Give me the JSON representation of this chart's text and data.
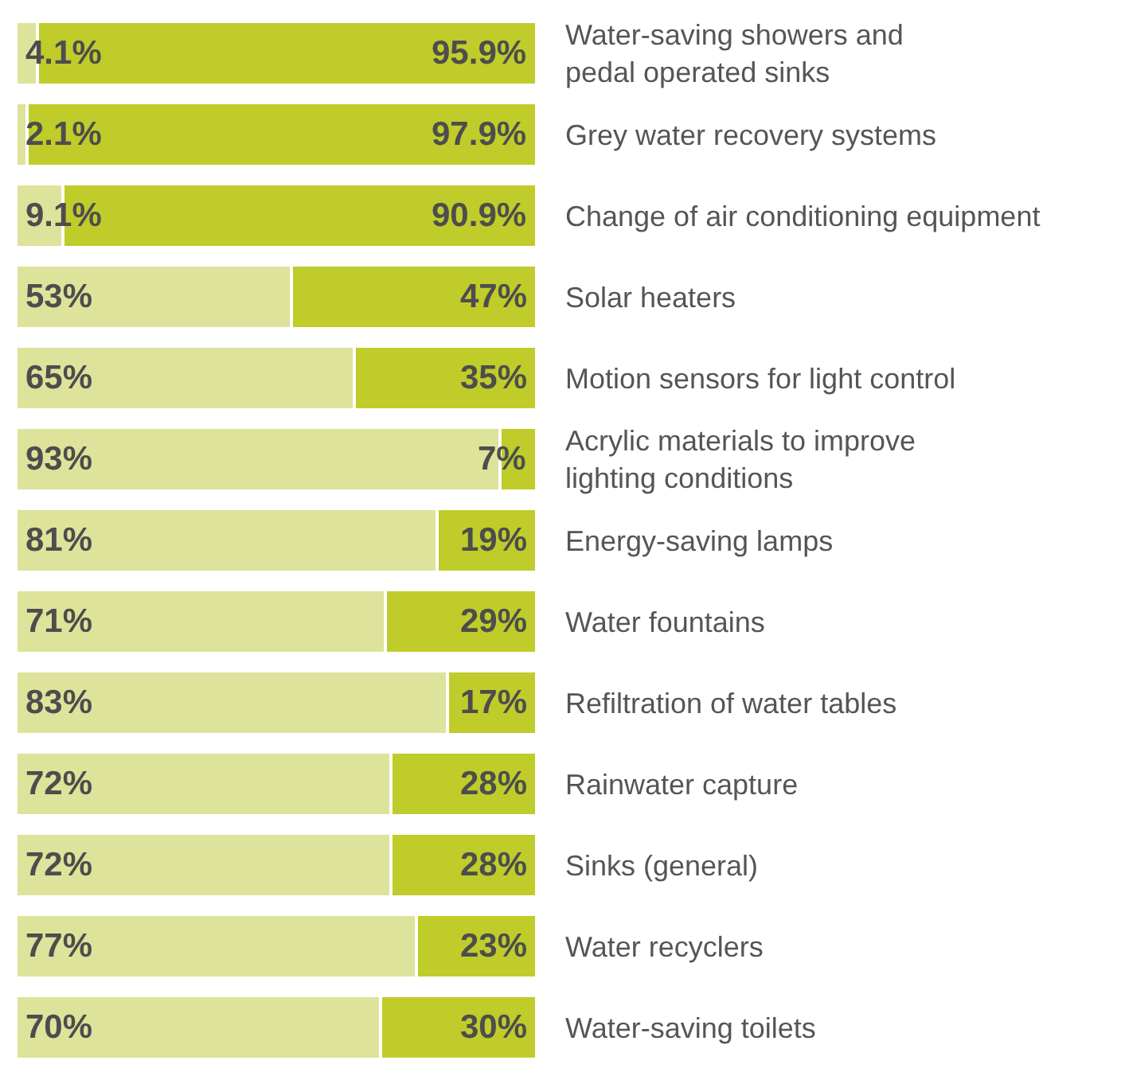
{
  "chart_data": {
    "type": "bar",
    "orientation": "horizontal",
    "stacked": true,
    "categories": [
      "Water-saving showers and\npedal operated sinks",
      "Grey water recovery systems",
      "Change of air conditioning equipment",
      "Solar heaters",
      "Motion sensors for light control",
      "Acrylic materials to improve\nlighting conditions",
      "Energy-saving lamps",
      "Water fountains",
      "Refiltration of water tables",
      "Rainwater capture",
      "Sinks (general)",
      "Water recyclers",
      "Water-saving toilets"
    ],
    "series": [
      {
        "color": "#dde39a",
        "values": [
          4.1,
          2.1,
          9.1,
          53,
          65,
          93,
          81,
          71,
          83,
          72,
          72,
          77,
          70
        ],
        "value_labels": [
          "4.1%",
          "2.1%",
          "9.1%",
          "53%",
          "65%",
          "93%",
          "81%",
          "71%",
          "83%",
          "72%",
          "72%",
          "77%",
          "70%"
        ]
      },
      {
        "color": "#bfcc2a",
        "values": [
          95.9,
          97.9,
          90.9,
          47,
          35,
          7,
          19,
          29,
          17,
          28,
          28,
          23,
          30
        ],
        "value_labels": [
          "95.9%",
          "97.9%",
          "90.9%",
          "47%",
          "35%",
          "7%",
          "19%",
          "29%",
          "17%",
          "28%",
          "28%",
          "23%",
          "30%"
        ]
      }
    ]
  }
}
